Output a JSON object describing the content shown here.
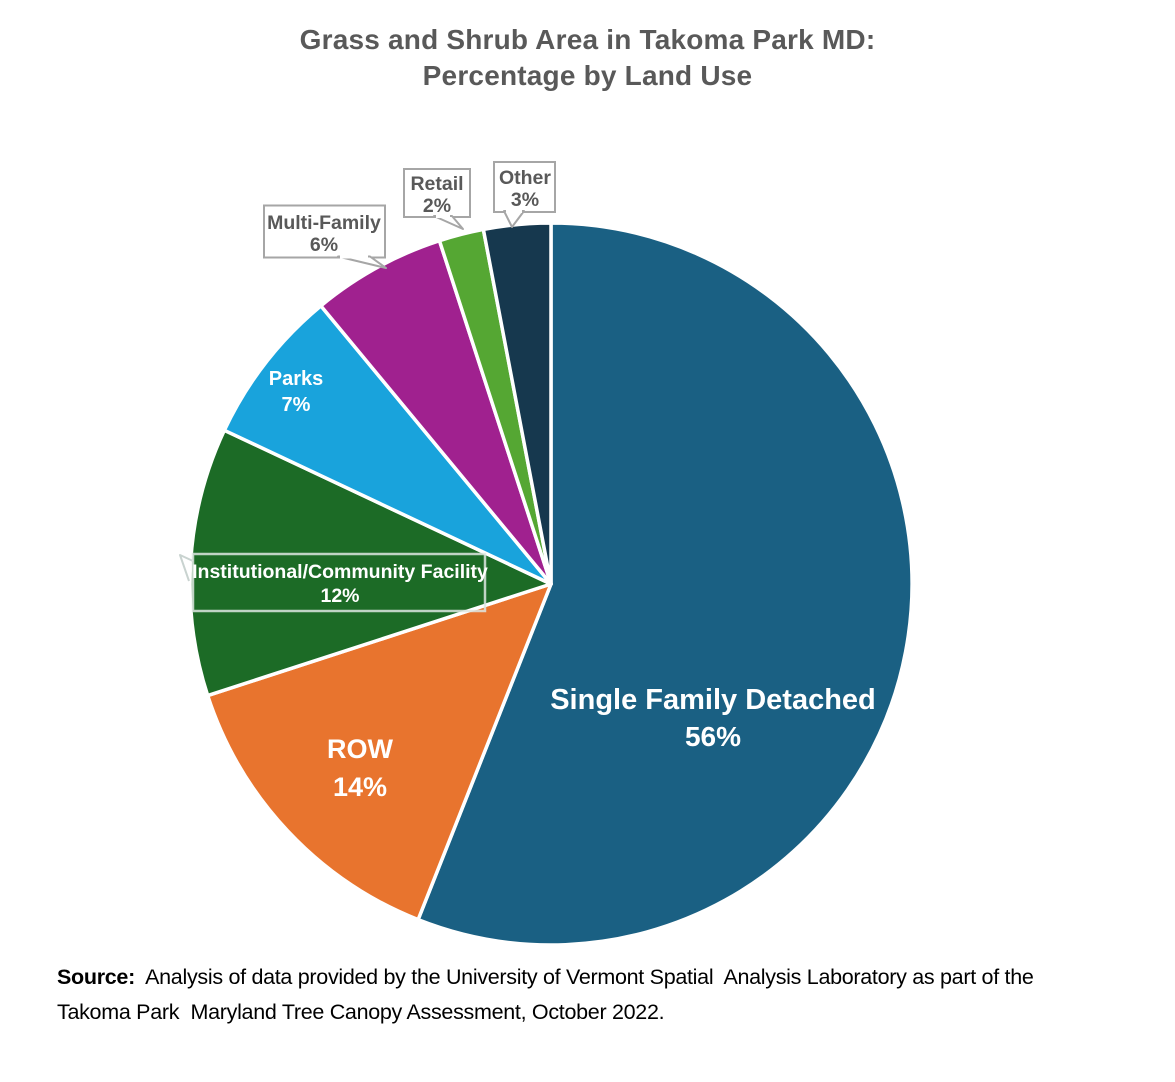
{
  "title": {
    "line1": "Grass and Shrub Area in Takoma Park MD:",
    "line2": "Percentage by Land Use"
  },
  "source": {
    "label": "Source:",
    "line1": "  Analysis of data provided by the University of Vermont Spatial  Analysis Laboratory as part of the",
    "line2": "Takoma Park  Maryland Tree Canopy Assessment, October 2022."
  },
  "chart_data": {
    "type": "pie",
    "title": "Grass and Shrub Area in Takoma Park MD: Percentage by Land Use",
    "start_angle_deg": 0,
    "direction": "clockwise",
    "legend": "none",
    "separator_color": "#FFFFFF",
    "slices": [
      {
        "label": "Single Family Detached",
        "value": 56,
        "pct": "56%",
        "color": "#1A6083",
        "label_style": "inside"
      },
      {
        "label": "ROW",
        "value": 14,
        "pct": "14%",
        "color": "#E8742E",
        "label_style": "inside"
      },
      {
        "label": "Institutional/Community Facility",
        "value": 12,
        "pct": "12%",
        "color": "#1C6B26",
        "label_style": "boxed-inside"
      },
      {
        "label": "Parks",
        "value": 7,
        "pct": "7%",
        "color": "#19A3DC",
        "label_style": "inside"
      },
      {
        "label": "Multi-Family",
        "value": 6,
        "pct": "6%",
        "color": "#A0218F",
        "label_style": "callout"
      },
      {
        "label": "Retail",
        "value": 2,
        "pct": "2%",
        "color": "#55A733",
        "label_style": "callout"
      },
      {
        "label": "Other",
        "value": 3,
        "pct": "3%",
        "color": "#16384E",
        "label_style": "callout"
      }
    ]
  }
}
